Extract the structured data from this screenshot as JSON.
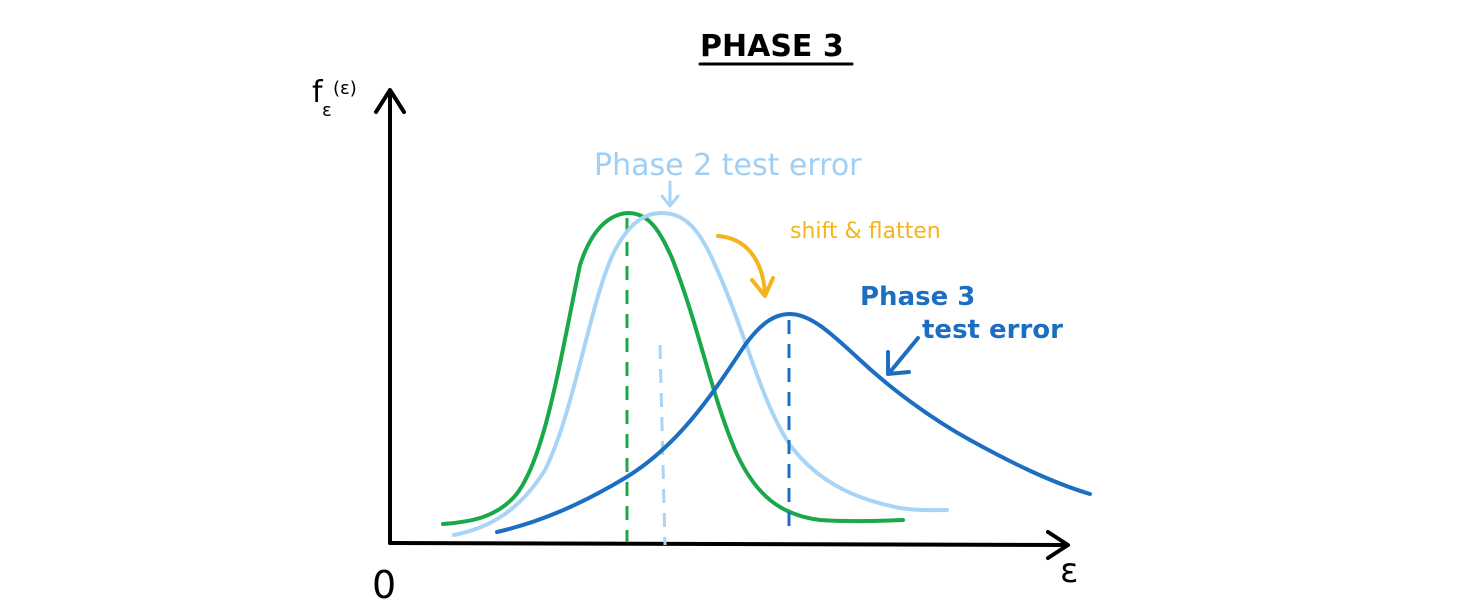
{
  "title": "PHASE 3",
  "axes": {
    "y_label_main": "f",
    "y_label_sub": "ε",
    "y_label_arg": "(ε)",
    "x_label": "ε",
    "origin_label": "0"
  },
  "labels": {
    "phase2": "Phase 2 test error",
    "shift": "shift & flatten",
    "phase3_line1": "Phase 3",
    "phase3_line2": "test error"
  },
  "colors": {
    "green": "#1aa84a",
    "light_blue": "#a8d4f6",
    "blue": "#1b6ec2",
    "orange": "#f4b41a",
    "axis": "#000000"
  }
}
